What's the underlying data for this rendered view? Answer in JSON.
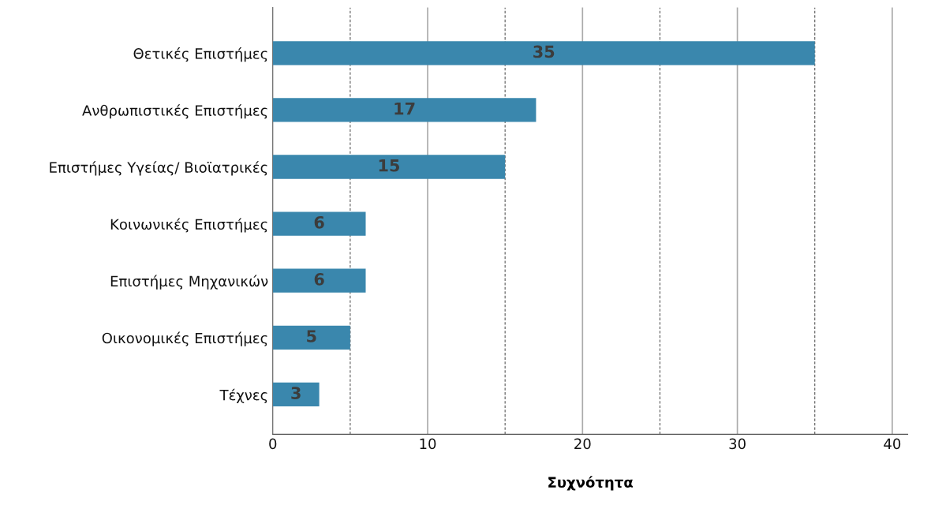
{
  "chart_data": {
    "type": "bar",
    "orientation": "horizontal",
    "xlabel": "Συχνότητα",
    "categories": [
      "Θετικές Επιστήμες",
      "Ανθρωπιστικές Επιστήμες",
      "Επιστήμες Υγείας/ Βιοϊατρικές",
      "Κοινωνικές Επιστήμες",
      "Επιστήμες Μηχανικών",
      "Οικονομικές Επιστήμες",
      "Τέχνες"
    ],
    "values": [
      35,
      17,
      15,
      6,
      6,
      5,
      3
    ],
    "color": "#3a87ad",
    "data_labels": true,
    "xlim": [
      0,
      41
    ],
    "xticks": [
      0,
      {
        "value": 5,
        "label": null
      },
      10,
      {
        "value": 15,
        "label": null
      },
      20,
      {
        "value": 25,
        "label": null
      },
      30,
      {
        "value": 35,
        "label": null
      },
      40
    ],
    "grid": "x"
  }
}
